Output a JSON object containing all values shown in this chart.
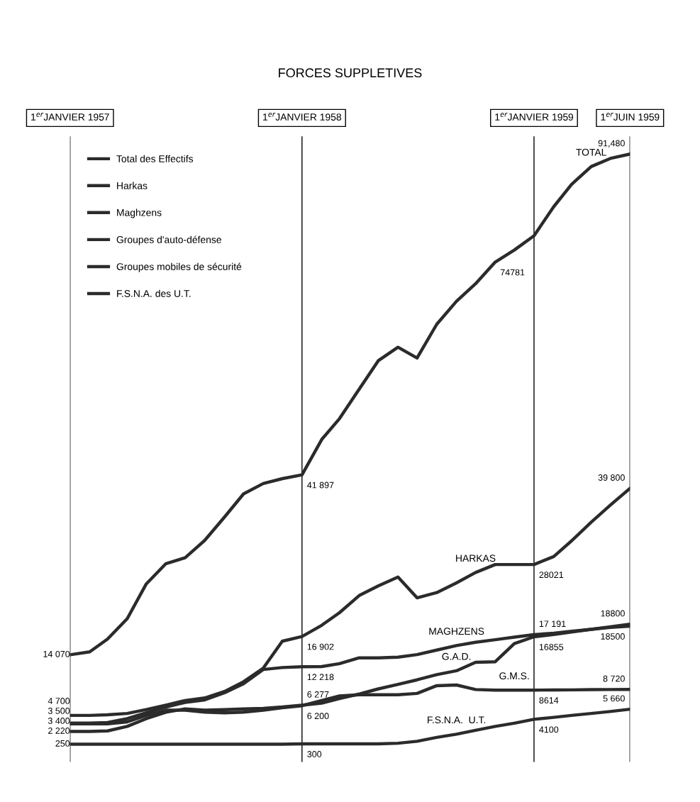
{
  "chart_data": {
    "type": "line",
    "title": "FORCES SUPPLETIVES",
    "x": [
      "1957-01",
      "1957-02",
      "1957-03",
      "1957-04",
      "1957-05",
      "1957-06",
      "1957-07",
      "1957-08",
      "1957-09",
      "1957-10",
      "1957-11",
      "1957-12",
      "1958-01",
      "1958-02",
      "1958-03",
      "1958-04",
      "1958-05",
      "1958-06",
      "1958-07",
      "1958-08",
      "1958-09",
      "1958-10",
      "1958-11",
      "1958-12",
      "1959-01",
      "1959-02",
      "1959-03",
      "1959-04",
      "1959-05",
      "1959-06"
    ],
    "xlim": [
      "1957-01",
      "1959-06"
    ],
    "xticks": [
      {
        "value": "1957-01",
        "label": "1$^{er}$JANVIER 1957"
      },
      {
        "value": "1958-01",
        "label": "1$^{er}$JANVIER 1958"
      },
      {
        "value": "1959-01",
        "label": "1$^{er}$JANVIER 1959"
      },
      {
        "value": "1959-06",
        "label": "1$^{er}$JUIN 1959"
      }
    ],
    "series": [
      {
        "name": "Total des Effectifs",
        "color": "#2b2b2b",
        "values": [
          14070,
          14520,
          16500,
          19650,
          25030,
          28170,
          29070,
          31760,
          35350,
          38940,
          40550,
          41300,
          41897,
          47350,
          50580,
          55150,
          59530,
          61620,
          59950,
          65170,
          68720,
          71430,
          74781,
          76640,
          78850,
          83340,
          86790,
          89550,
          90800,
          91480
        ],
        "value_labels": [
          "14 070",
          null,
          null,
          null,
          null,
          null,
          null,
          null,
          null,
          null,
          null,
          null,
          "41 897",
          null,
          null,
          null,
          null,
          null,
          null,
          null,
          null,
          null,
          "74781",
          null,
          null,
          null,
          null,
          null,
          null,
          "91,480"
        ]
      },
      {
        "name": "Harkas",
        "color": "#2b2b2b",
        "values": [
          4700,
          4700,
          4800,
          5000,
          5600,
          6300,
          7000,
          7400,
          8400,
          9900,
          12000,
          16170,
          16902,
          18630,
          20580,
          23230,
          24720,
          26100,
          22880,
          23690,
          25180,
          26790,
          28020,
          28021,
          28021,
          29260,
          31680,
          34580,
          37200,
          39800
        ],
        "value_labels": [
          "4 700",
          null,
          null,
          null,
          null,
          null,
          null,
          null,
          null,
          null,
          null,
          null,
          "16 902",
          null,
          null,
          null,
          null,
          null,
          null,
          null,
          null,
          null,
          null,
          null,
          "28021",
          null,
          null,
          null,
          null,
          "39 800"
        ]
      },
      {
        "name": "Maghzens",
        "color": "#2b2b2b",
        "values": [
          3500,
          3500,
          3600,
          4200,
          5100,
          6000,
          6700,
          7100,
          8200,
          9600,
          11800,
          12100,
          12218,
          12250,
          12700,
          13600,
          13600,
          13700,
          14100,
          14800,
          15500,
          16000,
          16400,
          16800,
          17191,
          17400,
          17700,
          18000,
          18300,
          18500
        ],
        "value_labels": [
          "3 500",
          null,
          null,
          null,
          null,
          null,
          null,
          null,
          null,
          null,
          null,
          null,
          "12 218",
          null,
          null,
          null,
          null,
          null,
          null,
          null,
          null,
          null,
          null,
          null,
          "17 191",
          null,
          null,
          null,
          null,
          "18500"
        ]
      },
      {
        "name": "Groupes d'auto-défense",
        "color": "#2b2b2b",
        "values": [
          2220,
          2220,
          2300,
          3000,
          4200,
          5200,
          5700,
          5500,
          5600,
          5700,
          5800,
          6000,
          6277,
          6600,
          7300,
          8000,
          8800,
          9500,
          10200,
          11000,
          11600,
          12900,
          13000,
          15800,
          16855,
          17200,
          17600,
          18000,
          18400,
          18800
        ],
        "value_labels": [
          "2 220",
          null,
          null,
          null,
          null,
          null,
          null,
          null,
          null,
          null,
          null,
          null,
          "6 277",
          null,
          null,
          null,
          null,
          null,
          null,
          null,
          null,
          null,
          null,
          null,
          "16855",
          null,
          null,
          null,
          null,
          "18800"
        ]
      },
      {
        "name": "Groupes mobiles de sécurité",
        "color": "#2b2b2b",
        "values": [
          3400,
          3400,
          3400,
          3700,
          4700,
          5500,
          5500,
          5200,
          5100,
          5200,
          5500,
          5900,
          6200,
          7000,
          7700,
          7900,
          7900,
          7900,
          8100,
          9300,
          9400,
          8700,
          8600,
          8600,
          8614,
          8630,
          8650,
          8680,
          8700,
          8720
        ],
        "value_labels": [
          "3 400",
          null,
          null,
          null,
          null,
          null,
          null,
          null,
          null,
          null,
          null,
          null,
          "6 200",
          null,
          null,
          null,
          null,
          null,
          null,
          null,
          null,
          null,
          null,
          null,
          "8614",
          null,
          null,
          null,
          null,
          "8 720"
        ]
      },
      {
        "name": "F.S.N.A. des U.T.",
        "color": "#2b2b2b",
        "values": [
          250,
          250,
          250,
          250,
          250,
          250,
          250,
          250,
          250,
          250,
          250,
          250,
          300,
          300,
          300,
          300,
          300,
          400,
          700,
          1300,
          1800,
          2400,
          3000,
          3500,
          4100,
          4400,
          4700,
          5000,
          5300,
          5660
        ],
        "value_labels": [
          "250",
          null,
          null,
          null,
          null,
          null,
          null,
          null,
          null,
          null,
          null,
          null,
          "300",
          null,
          null,
          null,
          null,
          null,
          null,
          null,
          null,
          null,
          null,
          null,
          "4100",
          null,
          null,
          null,
          null,
          "5 660"
        ]
      }
    ],
    "annotations": [
      {
        "text": "TOTAL",
        "x": "1959-04",
        "y": 89550
      },
      {
        "text": "HARKAS",
        "x": "1958-10",
        "y": 26790
      },
      {
        "text": "MAGHZENS",
        "x": "1958-09",
        "y": 15500
      },
      {
        "text": "G.A.D.",
        "x": "1958-09",
        "y": 11600
      },
      {
        "text": "G.M.S.",
        "x": "1958-12",
        "y": 8600
      },
      {
        "text": "F.S.N.A.  U.T.",
        "x": "1958-09",
        "y": 1800
      }
    ],
    "grid": "x",
    "legend": "top left",
    "line_style": "solid"
  }
}
